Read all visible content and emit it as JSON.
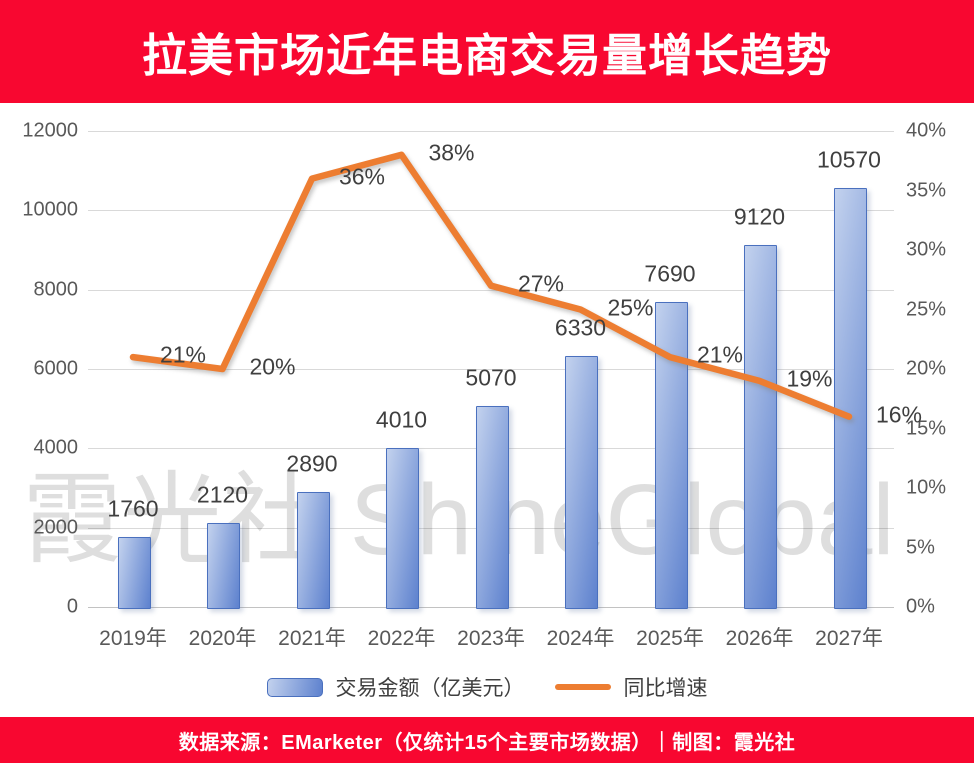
{
  "header": {
    "title": "拉美市场近年电商交易量增长趋势",
    "bg_color": "#f80730",
    "text_color": "#ffffff"
  },
  "watermark": {
    "prefix": "霞光社 Sh",
    "accent": "i",
    "suffix": "neGlobal"
  },
  "chart_data": {
    "type": "bar+line",
    "title": "拉美市场近年电商交易量增长趋势",
    "categories": [
      "2019年",
      "2020年",
      "2021年",
      "2022年",
      "2023年",
      "2024年",
      "2025年",
      "2026年",
      "2027年"
    ],
    "series": [
      {
        "name": "交易金额（亿美元）",
        "type": "bar",
        "axis": "left",
        "values": [
          1760,
          2120,
          2890,
          4010,
          5070,
          6330,
          7690,
          9120,
          10570
        ],
        "labels": [
          "1760",
          "2120",
          "2890",
          "4010",
          "5070",
          "6330",
          "7690",
          "9120",
          "10570"
        ],
        "color_light": "#c3d2ee",
        "color_dark": "#5d81ce",
        "border_color": "#4a70be"
      },
      {
        "name": "同比增速",
        "type": "line",
        "axis": "right",
        "values": [
          21,
          20,
          36,
          38,
          27,
          25,
          21,
          19,
          16
        ],
        "unit": "%",
        "labels": [
          "21%",
          "20%",
          "36%",
          "38%",
          "27%",
          "25%",
          "21%",
          "19%",
          "16%"
        ],
        "color": "#ed7d31"
      }
    ],
    "left_axis": {
      "min": 0,
      "max": 12000,
      "step": 2000,
      "ticks": [
        "12000",
        "10000",
        "8000",
        "6000",
        "4000",
        "2000",
        "0"
      ]
    },
    "right_axis": {
      "min": 0,
      "max": 40,
      "step": 5,
      "ticks": [
        "40%",
        "35%",
        "30%",
        "25%",
        "20%",
        "15%",
        "10%",
        "5%",
        "0%"
      ]
    },
    "grid": true,
    "legend_position": "bottom",
    "gridline_color": "#d9d9d9",
    "tick_color": "#595959",
    "data_label_color": "#3f3f3f"
  },
  "legend": {
    "bar_label": "交易金额（亿美元）",
    "line_label": "同比增速"
  },
  "footer": {
    "text": "数据来源：EMarketer（仅统计15个主要市场数据）｜制图：霞光社",
    "bg_color": "#f80730",
    "text_color": "#ffffff"
  }
}
